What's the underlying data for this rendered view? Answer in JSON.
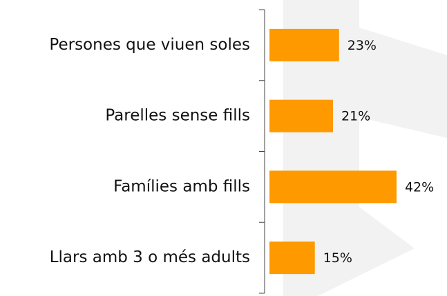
{
  "chart_data": {
    "type": "bar",
    "orientation": "horizontal",
    "categories": [
      "Persones que viuen soles",
      "Parelles sense fills",
      "Famílies amb fills",
      "Llars amb 3 o més adults"
    ],
    "values": [
      23,
      21,
      42,
      15
    ],
    "value_labels": [
      "23%",
      "21%",
      "42%",
      "15%"
    ],
    "color": "#ff9900"
  }
}
